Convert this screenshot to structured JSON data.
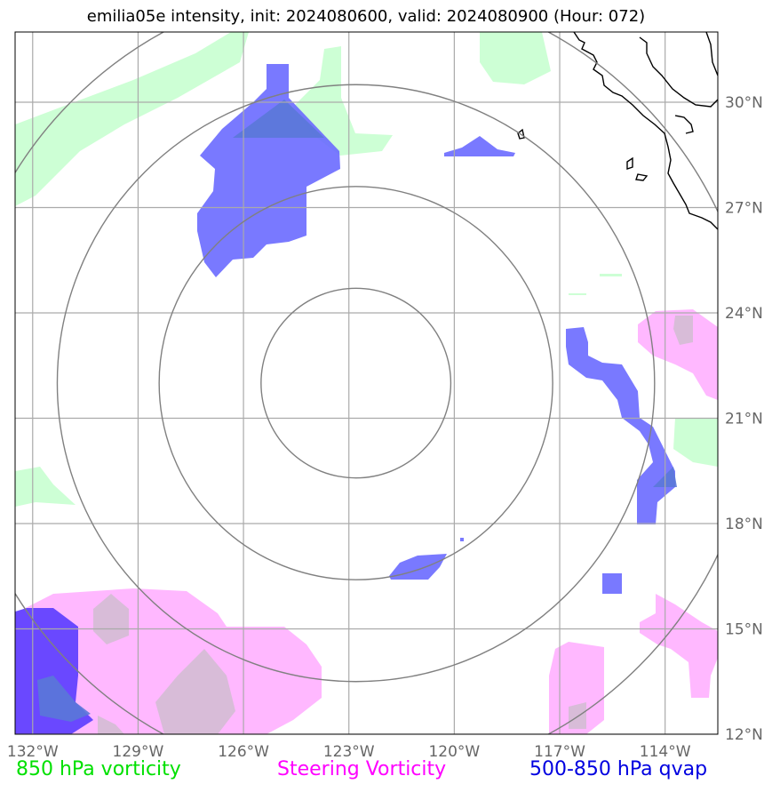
{
  "title": "emilia05e intensity, init: 2024080600, valid: 2024080900 (Hour: 072)",
  "map": {
    "lon_range": [
      -132.5,
      -112.5
    ],
    "lat_range": [
      12,
      32
    ],
    "lon_ticks": [
      {
        "value": -132,
        "label": "132°W"
      },
      {
        "value": -129,
        "label": "129°W"
      },
      {
        "value": -126,
        "label": "126°W"
      },
      {
        "value": -123,
        "label": "123°W"
      },
      {
        "value": -120,
        "label": "120°W"
      },
      {
        "value": -117,
        "label": "117°W"
      },
      {
        "value": -114,
        "label": "114°W"
      }
    ],
    "lat_ticks": [
      {
        "value": 12,
        "label": "12°N"
      },
      {
        "value": 15,
        "label": "15°N"
      },
      {
        "value": 18,
        "label": "18°N"
      },
      {
        "value": 21,
        "label": "21°N"
      },
      {
        "value": 24,
        "label": "24°N"
      },
      {
        "value": 27,
        "label": "27°N"
      },
      {
        "value": 30,
        "label": "30°N"
      }
    ],
    "storm_center": {
      "lon": -122.8,
      "lat": 22.0
    },
    "range_rings_deg": [
      2.7,
      5.6,
      8.5,
      11.4
    ],
    "colors": {
      "vorticity_850": "#c8ffd0",
      "steering_vorticity": "#ffb4ff",
      "qvap": "#6060ff",
      "grid": "#aaaaaa",
      "rings": "#808080",
      "coast": "#000000"
    }
  },
  "legend": {
    "vorticity_850": "850 hPa vorticity",
    "steering_vorticity": "Steering Vorticity",
    "qvap": "500-850 hPa qvap"
  }
}
